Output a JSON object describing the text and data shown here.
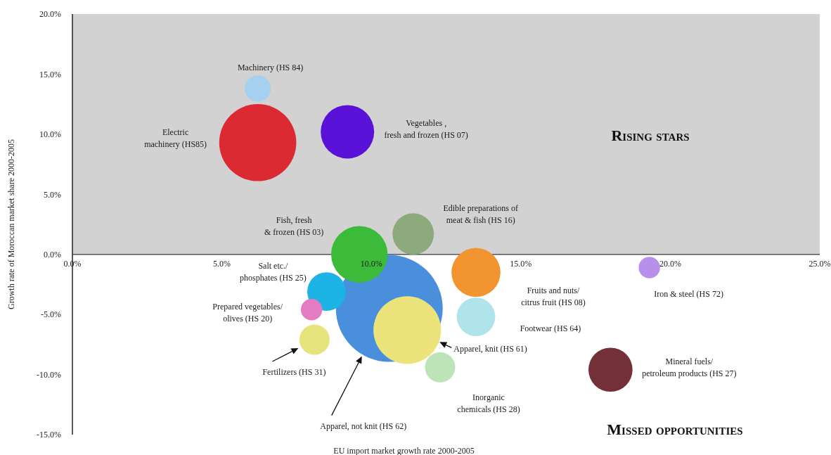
{
  "chart_data": {
    "type": "bubble",
    "xlabel": "EU import market growth rate 2000-2005",
    "ylabel": "Growth rate of Moroccan market share 2000-2005",
    "xlim": [
      0,
      25
    ],
    "xticks": [
      {
        "value": 0,
        "label": "0.0%"
      },
      {
        "value": 5,
        "label": "5.0%"
      },
      {
        "value": 10,
        "label": "10.0%"
      },
      {
        "value": 15,
        "label": "15.0%"
      },
      {
        "value": 20,
        "label": "20.0%"
      },
      {
        "value": 25,
        "label": "25.0%"
      }
    ],
    "ylim": [
      -15,
      20
    ],
    "yticks": [
      {
        "value": -15,
        "label": "-15.0%"
      },
      {
        "value": -10,
        "label": "-10.0%"
      },
      {
        "value": -5,
        "label": "-5.0%"
      },
      {
        "value": 0,
        "label": "0.0%"
      },
      {
        "value": 5,
        "label": "5.0%"
      },
      {
        "value": 10,
        "label": "10.0%"
      },
      {
        "value": 15,
        "label": "15.0%"
      },
      {
        "value": 20,
        "label": "20.0%"
      }
    ],
    "bands": [
      {
        "axis": "y",
        "from": 0,
        "to": 20,
        "color": "#d2d2d2"
      }
    ],
    "annotations": [
      "Rising stars",
      "Missed opportunities"
    ],
    "series": [
      {
        "name": "Apparel, not knit (HS 62)",
        "color": "#4a8fdc",
        "x": [
          10.6
        ],
        "values": [
          -4.5
        ],
        "sizes": [
          1
        ]
      },
      {
        "name": "Electric\nmachinery (HS85)",
        "color": "#dc2a32",
        "x": [
          6.2
        ],
        "values": [
          9.3
        ],
        "sizes": [
          0.52
        ]
      },
      {
        "name": "Machinery (HS 84)",
        "color": "#a6d0f0",
        "x": [
          6.2
        ],
        "values": [
          13.8
        ],
        "sizes": [
          0.06
        ]
      },
      {
        "name": "Vegetables ,\nfresh and frozen (HS 07)",
        "color": "#5a12d8",
        "x": [
          9.2
        ],
        "values": [
          10.2
        ],
        "sizes": [
          0.25
        ]
      },
      {
        "name": "Fish, fresh\n& frozen (HS 03)",
        "color": "#3cba3a",
        "x": [
          9.6
        ],
        "values": [
          0.0
        ],
        "sizes": [
          0.28
        ]
      },
      {
        "name": "Edible preparations of\nmeat & fish (HS 16)",
        "color": "#8caa7c",
        "x": [
          11.4
        ],
        "values": [
          1.7
        ],
        "sizes": [
          0.15
        ]
      },
      {
        "name": "Salt etc./\nphosphates (HS 25)",
        "color": "#1cb4e4",
        "x": [
          8.5
        ],
        "values": [
          -3.1
        ],
        "sizes": [
          0.13
        ]
      },
      {
        "name": "Prepared vegetables/\nolives (HS 20)",
        "color": "#e47cc4",
        "x": [
          8.0
        ],
        "values": [
          -4.6
        ],
        "sizes": [
          0.04
        ]
      },
      {
        "name": "Fertilizers (HS 31)",
        "color": "#e6e47c",
        "x": [
          8.1
        ],
        "values": [
          -7.1
        ],
        "sizes": [
          0.08
        ]
      },
      {
        "name": "Apparel, knit (HS 61)",
        "color": "#ece47a",
        "x": [
          11.2
        ],
        "values": [
          -6.3
        ],
        "sizes": [
          0.4
        ]
      },
      {
        "name": "Fruits and nuts/\ncitrus fruit (HS 08)",
        "color": "#f29430",
        "x": [
          13.5
        ],
        "values": [
          -1.5
        ],
        "sizes": [
          0.21
        ]
      },
      {
        "name": "Footwear (HS 64)",
        "color": "#aee4ea",
        "x": [
          13.5
        ],
        "values": [
          -5.2
        ],
        "sizes": [
          0.13
        ]
      },
      {
        "name": "Inorganic\nchemicals (HS 28)",
        "color": "#bce4b8",
        "x": [
          12.3
        ],
        "values": [
          -9.4
        ],
        "sizes": [
          0.08
        ]
      },
      {
        "name": "Iron & steel (HS 72)",
        "color": "#b890ec",
        "x": [
          19.3
        ],
        "values": [
          -1.1
        ],
        "sizes": [
          0.04
        ]
      },
      {
        "name": "Mineral fuels/\npetroleum products (HS 27)",
        "color": "#743038",
        "x": [
          18.0
        ],
        "values": [
          -9.6
        ],
        "sizes": [
          0.17
        ]
      }
    ]
  }
}
